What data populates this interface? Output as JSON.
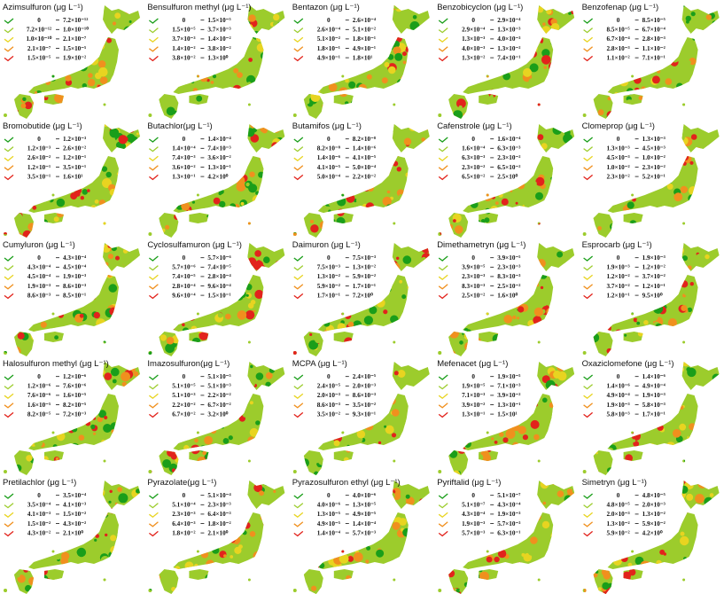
{
  "legend_colors": [
    "#1a9e1a",
    "#9ccc2c",
    "#e8d420",
    "#f0901e",
    "#e2231c"
  ],
  "panels": [
    {
      "title": "Azimsulfuron (μg L⁻¹)",
      "legend": [
        [
          "0",
          "7.2×10⁻¹²"
        ],
        [
          "7.2×10⁻¹²",
          "1.0×10⁻¹⁰"
        ],
        [
          "1.0×10⁻¹⁰",
          "2.1×10⁻⁷"
        ],
        [
          "2.1×10⁻⁷",
          "1.5×10⁻⁵"
        ],
        [
          "1.5×10⁻⁵",
          "1.9×10⁻²"
        ]
      ]
    },
    {
      "title": "Bensulfuron methyl (μg L⁻¹)",
      "legend": [
        [
          "0",
          "1.5×10⁻⁵"
        ],
        [
          "1.5×10⁻⁵",
          "3.7×10⁻³"
        ],
        [
          "3.7×10⁻³",
          "1.4×10⁻²"
        ],
        [
          "1.4×10⁻²",
          "3.8×10⁻²"
        ],
        [
          "3.8×10⁻²",
          "1.3×10⁰"
        ]
      ]
    },
    {
      "title": "Bentazon (μg L⁻¹)",
      "legend": [
        [
          "0",
          "2.6×10⁻⁴"
        ],
        [
          "2.6×10⁻⁴",
          "5.1×10⁻²"
        ],
        [
          "5.1×10⁻²",
          "1.8×10⁻¹"
        ],
        [
          "1.8×10⁻¹",
          "4.9×10⁻¹"
        ],
        [
          "4.9×10⁻¹",
          "1.8×10¹"
        ]
      ]
    },
    {
      "title": "Benzobicyclon (μg L⁻¹)",
      "legend": [
        [
          "0",
          "2.9×10⁻⁴"
        ],
        [
          "2.9×10⁻⁴",
          "1.3×10⁻³"
        ],
        [
          "1.3×10⁻³",
          "4.0×10⁻³"
        ],
        [
          "4.0×10⁻³",
          "1.3×10⁻²"
        ],
        [
          "1.3×10⁻²",
          "7.4×10⁻¹"
        ]
      ]
    },
    {
      "title": "Benzofenap (μg L⁻¹)",
      "legend": [
        [
          "0",
          "8.5×10⁻⁵"
        ],
        [
          "8.5×10⁻⁵",
          "6.7×10⁻⁴"
        ],
        [
          "6.7×10⁻⁴",
          "2.8×10⁻³"
        ],
        [
          "2.8×10⁻³",
          "1.1×10⁻²"
        ],
        [
          "1.1×10⁻²",
          "7.1×10⁻¹"
        ]
      ]
    },
    {
      "title": "Bromobutide (μg L⁻¹)",
      "legend": [
        [
          "0",
          "1.2×10⁻³"
        ],
        [
          "1.2×10⁻³",
          "2.6×10⁻²"
        ],
        [
          "2.6×10⁻²",
          "1.2×10⁻¹"
        ],
        [
          "1.2×10⁻¹",
          "3.5×10⁻¹"
        ],
        [
          "3.5×10⁻¹",
          "1.6×10¹"
        ]
      ]
    },
    {
      "title": "Butachlor(μg L⁻¹)",
      "legend": [
        [
          "0",
          "1.4×10⁻⁴"
        ],
        [
          "1.4×10⁻⁴",
          "7.4×10⁻³"
        ],
        [
          "7.4×10⁻³",
          "3.6×10⁻²"
        ],
        [
          "3.6×10⁻²",
          "1.3×10⁻¹"
        ],
        [
          "1.3×10⁻¹",
          "4.2×10⁰"
        ]
      ]
    },
    {
      "title": "Butamifos (μg L⁻¹)",
      "legend": [
        [
          "0",
          "8.2×10⁻⁸"
        ],
        [
          "8.2×10⁻⁸",
          "1.4×10⁻⁶"
        ],
        [
          "1.4×10⁻⁶",
          "4.1×10⁻⁵"
        ],
        [
          "4.1×10⁻⁵",
          "5.0×10⁻⁴"
        ],
        [
          "5.0×10⁻⁴",
          "2.2×10⁻²"
        ]
      ]
    },
    {
      "title": "Cafenstrole (μg L⁻¹)",
      "legend": [
        [
          "0",
          "1.6×10⁻⁴"
        ],
        [
          "1.6×10⁻⁴",
          "6.3×10⁻³"
        ],
        [
          "6.3×10⁻³",
          "2.3×10⁻²"
        ],
        [
          "2.3×10⁻²",
          "6.5×10⁻²"
        ],
        [
          "6.5×10⁻²",
          "2.5×10⁰"
        ]
      ]
    },
    {
      "title": "Clomeprop (μg L⁻¹)",
      "legend": [
        [
          "0",
          "1.3×10⁻³"
        ],
        [
          "1.3×10⁻³",
          "4.5×10⁻³"
        ],
        [
          "4.5×10⁻³",
          "1.0×10⁻²"
        ],
        [
          "1.0×10⁻²",
          "2.3×10⁻²"
        ],
        [
          "2.3×10⁻²",
          "5.2×10⁻¹"
        ]
      ]
    },
    {
      "title": "Cumyluron (μg L⁻¹)",
      "legend": [
        [
          "0",
          "4.3×10⁻⁴"
        ],
        [
          "4.3×10⁻⁴",
          "4.5×10⁻⁴"
        ],
        [
          "4.5×10⁻⁴",
          "1.9×10⁻³"
        ],
        [
          "1.9×10⁻³",
          "8.6×10⁻³"
        ],
        [
          "8.6×10⁻³",
          "8.5×10⁻¹"
        ]
      ]
    },
    {
      "title": "Cyclosulfamuron (μg L⁻¹)",
      "legend": [
        [
          "0",
          "5.7×10⁻⁶"
        ],
        [
          "5.7×10⁻⁶",
          "7.4×10⁻⁵"
        ],
        [
          "7.4×10⁻⁵",
          "2.8×10⁻⁴"
        ],
        [
          "2.8×10⁻⁴",
          "9.6×10⁻⁴"
        ],
        [
          "9.6×10⁻⁴",
          "1.5×10⁻¹"
        ]
      ]
    },
    {
      "title": "Daimuron (μg L⁻¹)",
      "legend": [
        [
          "0",
          "7.5×10⁻³"
        ],
        [
          "7.5×10⁻³",
          "1.3×10⁻²"
        ],
        [
          "1.3×10⁻²",
          "5.9×10⁻²"
        ],
        [
          "5.9×10⁻²",
          "1.7×10⁻¹"
        ],
        [
          "1.7×10⁻¹",
          "7.2×10⁰"
        ]
      ]
    },
    {
      "title": "Dimethametryn (μg L⁻¹)",
      "legend": [
        [
          "0",
          "3.9×10⁻⁵"
        ],
        [
          "3.9×10⁻⁵",
          "2.3×10⁻³"
        ],
        [
          "2.3×10⁻³",
          "8.3×10⁻³"
        ],
        [
          "8.3×10⁻³",
          "2.5×10⁻²"
        ],
        [
          "2.5×10⁻²",
          "1.6×10⁰"
        ]
      ]
    },
    {
      "title": "Esprocarb (μg L⁻¹)",
      "legend": [
        [
          "0",
          "1.9×10⁻³"
        ],
        [
          "1.9×10⁻³",
          "1.2×10⁻²"
        ],
        [
          "1.2×10⁻²",
          "3.7×10⁻²"
        ],
        [
          "3.7×10⁻²",
          "1.2×10⁻¹"
        ],
        [
          "1.2×10⁻¹",
          "9.5×10⁰"
        ]
      ]
    },
    {
      "title": "Halosulfuron methyl (μg L⁻¹)",
      "legend": [
        [
          "0",
          "1.2×10⁻⁶"
        ],
        [
          "1.2×10⁻⁶",
          "7.6×10⁻⁶"
        ],
        [
          "7.6×10⁻⁶",
          "1.6×10⁻⁵"
        ],
        [
          "1.6×10⁻⁵",
          "8.2×10⁻⁵"
        ],
        [
          "8.2×10⁻⁵",
          "7.2×10⁻³"
        ]
      ]
    },
    {
      "title": "Imazosulfuron(μg L⁻¹)",
      "legend": [
        [
          "0",
          "5.1×10⁻⁵"
        ],
        [
          "5.1×10⁻⁵",
          "5.1×10⁻³"
        ],
        [
          "5.1×10⁻³",
          "2.2×10⁻²"
        ],
        [
          "2.2×10⁻²",
          "6.7×10⁻²"
        ],
        [
          "6.7×10⁻²",
          "3.2×10⁰"
        ]
      ]
    },
    {
      "title": "MCPA (μg L⁻¹)",
      "legend": [
        [
          "0",
          "2.4×10⁻⁵"
        ],
        [
          "2.4×10⁻⁵",
          "2.0×10⁻³"
        ],
        [
          "2.0×10⁻³",
          "8.6×10⁻³"
        ],
        [
          "8.6×10⁻³",
          "3.5×10⁻²"
        ],
        [
          "3.5×10⁻²",
          "9.3×10⁻¹"
        ]
      ]
    },
    {
      "title": "Mefenacet (μg L⁻¹)",
      "legend": [
        [
          "0",
          "1.9×10⁻⁵"
        ],
        [
          "1.9×10⁻⁵",
          "7.1×10⁻³"
        ],
        [
          "7.1×10⁻³",
          "3.9×10⁻²"
        ],
        [
          "3.9×10⁻²",
          "1.3×10⁻¹"
        ],
        [
          "1.3×10⁻¹",
          "1.5×10¹"
        ]
      ]
    },
    {
      "title": "Oxaziclomefone (μg L⁻¹)",
      "legend": [
        [
          "0",
          "1.4×10⁻⁶"
        ],
        [
          "1.4×10⁻⁶",
          "4.9×10⁻⁴"
        ],
        [
          "4.9×10⁻⁴",
          "1.9×10⁻³"
        ],
        [
          "1.9×10⁻³",
          "5.8×10⁻³"
        ],
        [
          "5.8×10⁻³",
          "1.7×10⁻¹"
        ]
      ]
    },
    {
      "title": "Pretilachlor (μg L⁻¹)",
      "legend": [
        [
          "0",
          "3.5×10⁻⁴"
        ],
        [
          "3.5×10⁻⁴",
          "4.1×10⁻³"
        ],
        [
          "4.1×10⁻³",
          "1.5×10⁻²"
        ],
        [
          "1.5×10⁻²",
          "4.3×10⁻²"
        ],
        [
          "4.3×10⁻²",
          "2.1×10⁰"
        ]
      ]
    },
    {
      "title": "Pyrazolate(μg L⁻¹)",
      "legend": [
        [
          "0",
          "5.1×10⁻⁴"
        ],
        [
          "5.1×10⁻⁴",
          "2.3×10⁻³"
        ],
        [
          "2.3×10⁻³",
          "6.4×10⁻³"
        ],
        [
          "6.4×10⁻³",
          "1.8×10⁻²"
        ],
        [
          "1.8×10⁻²",
          "2.1×10⁰"
        ]
      ]
    },
    {
      "title": "Pyrazosulfuron ethyl (μg L⁻¹)",
      "legend": [
        [
          "0",
          "4.0×10⁻⁶"
        ],
        [
          "4.0×10⁻⁶",
          "1.3×10⁻⁵"
        ],
        [
          "1.3×10⁻⁵",
          "4.9×10⁻⁵"
        ],
        [
          "4.9×10⁻⁵",
          "1.4×10⁻⁴"
        ],
        [
          "1.4×10⁻⁴",
          "5.7×10⁻³"
        ]
      ]
    },
    {
      "title": "Pyriftalid (μg L⁻¹)",
      "legend": [
        [
          "0",
          "5.1×10⁻⁷"
        ],
        [
          "5.1×10⁻⁷",
          "4.3×10⁻⁴"
        ],
        [
          "4.3×10⁻⁴",
          "1.9×10⁻³"
        ],
        [
          "1.9×10⁻³",
          "5.7×10⁻³"
        ],
        [
          "5.7×10⁻³",
          "6.3×10⁻¹"
        ]
      ]
    },
    {
      "title": "Simetryn (μg L⁻¹)",
      "legend": [
        [
          "0",
          "4.8×10⁻⁵"
        ],
        [
          "4.8×10⁻⁵",
          "2.0×10⁻³"
        ],
        [
          "2.0×10⁻³",
          "1.3×10⁻²"
        ],
        [
          "1.3×10⁻²",
          "5.9×10⁻²"
        ],
        [
          "5.9×10⁻²",
          "4.2×10⁰"
        ]
      ]
    }
  ]
}
